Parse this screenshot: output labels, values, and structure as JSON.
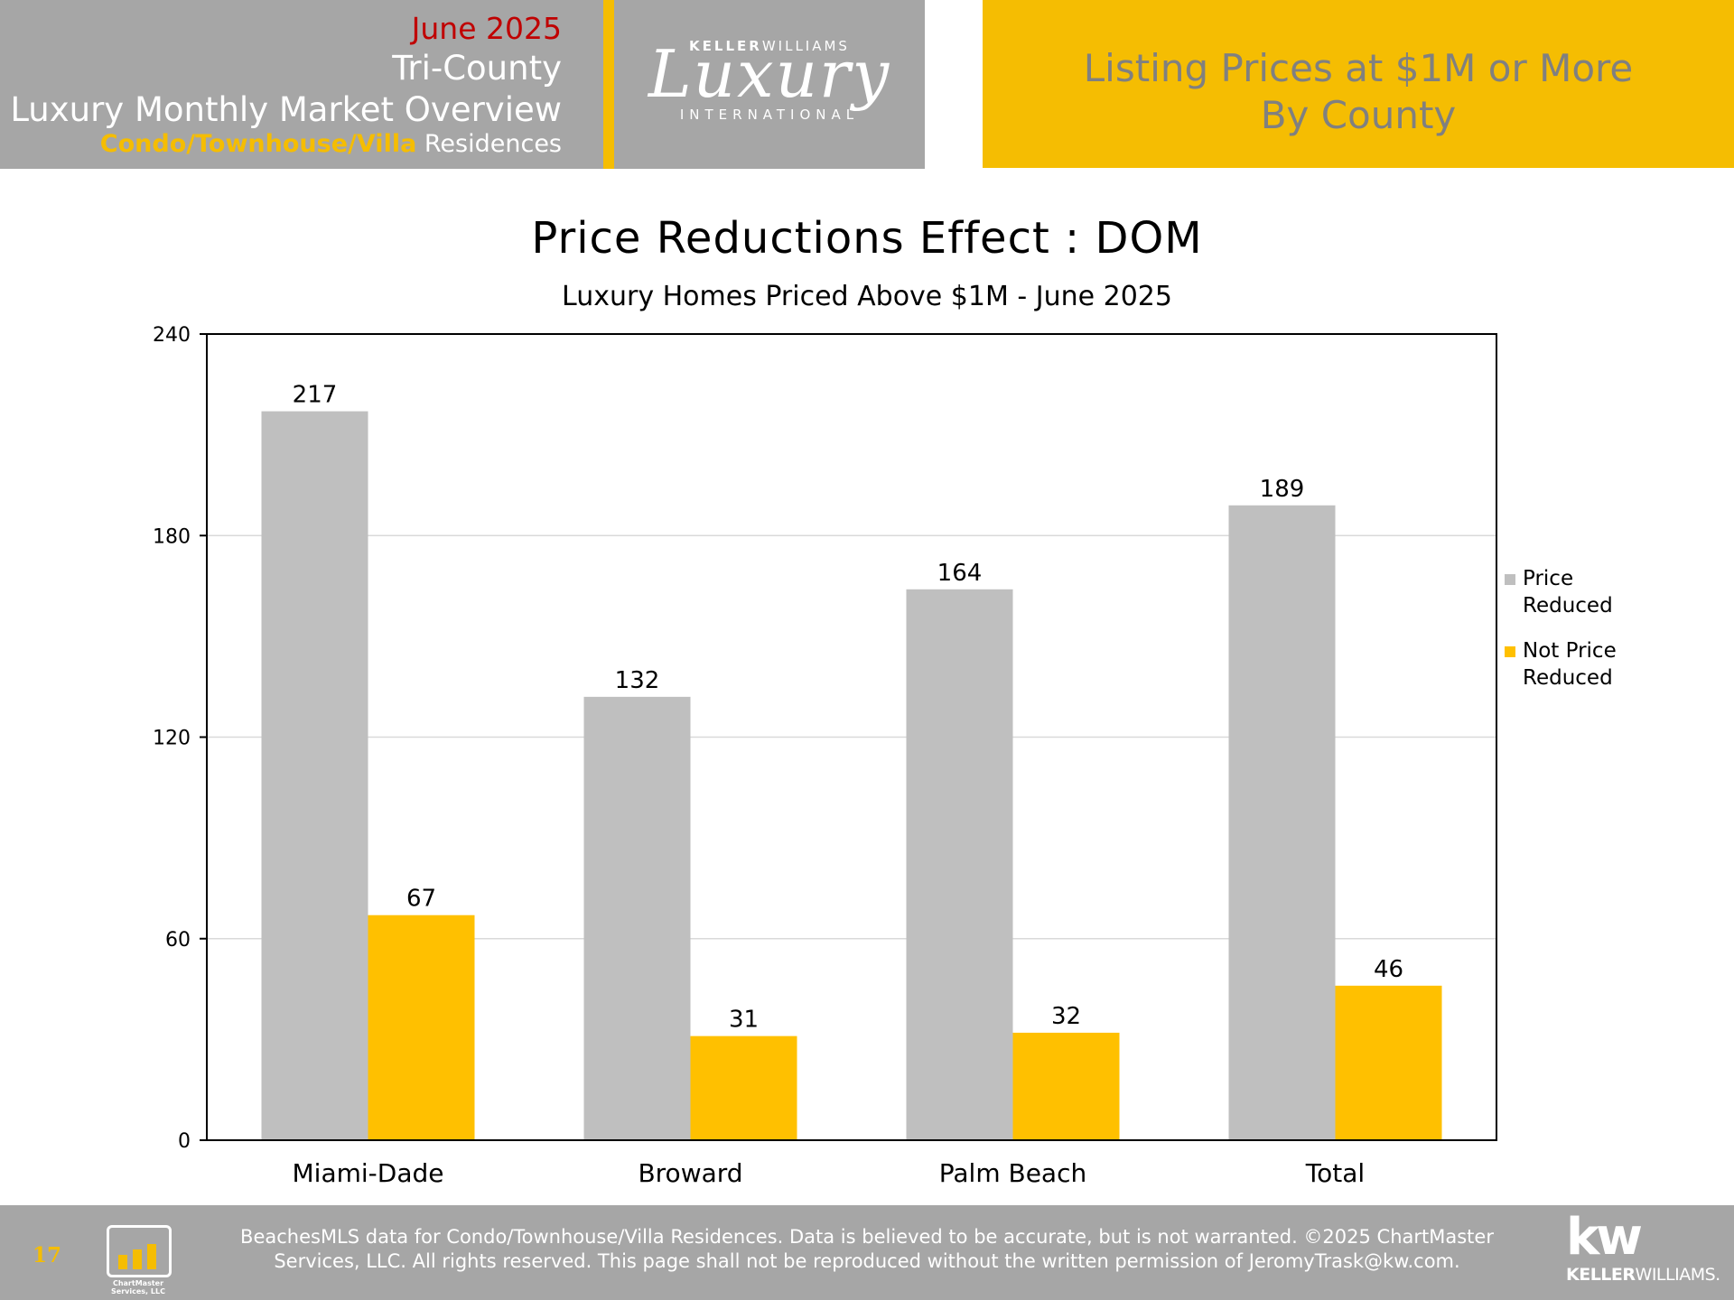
{
  "header": {
    "date": "June 2025",
    "region": "Tri-County",
    "report_title": "Luxury Monthly Market Overview",
    "property_type_highlight": "Condo/Townhouse/Villa",
    "property_type_rest": " Residences",
    "logo_top_bold": "KELLER",
    "logo_top_rest": "WILLIAMS",
    "logo_script": "Luxury",
    "logo_bottom": "INTERNATIONAL",
    "topic_line1": "Listing Prices at $1M or More",
    "topic_line2": "By County"
  },
  "colors": {
    "accent_gold": "#f5bd02",
    "bar_gray": "#bfbfbf",
    "bar_gold": "#ffc000",
    "header_gray": "#a6a6a6",
    "date_red": "#c00000"
  },
  "chart_data": {
    "type": "bar",
    "title": "Price Reductions Effect : DOM",
    "subtitle": "Luxury Homes Priced Above $1M - June 2025",
    "categories": [
      "Miami-Dade",
      "Broward",
      "Palm Beach",
      "Total"
    ],
    "series": [
      {
        "name": "Price Reduced",
        "legend_lines": [
          "Price",
          "Reduced"
        ],
        "color": "#bfbfbf",
        "values": [
          217,
          132,
          164,
          189
        ]
      },
      {
        "name": "Not Price Reduced",
        "legend_lines": [
          "Not Price",
          "Reduced"
        ],
        "color": "#ffc000",
        "values": [
          67,
          31,
          32,
          46
        ]
      }
    ],
    "ylim": [
      0,
      240
    ],
    "yticks": [
      0,
      60,
      120,
      180,
      240
    ],
    "grid": true,
    "legend_position": "right",
    "data_labels": true
  },
  "footer": {
    "page_number": "17",
    "chartmaster_logo_text": "ChartMaster Services, LLC",
    "disclaimer_line1": "BeachesMLS data for Condo/Townhouse/Villa Residences.  Data is believed to be accurate, but is not warranted.   ©2025  ChartMaster",
    "disclaimer_line2": "Services, LLC.  All rights reserved. This page shall not be reproduced without the written permission of JeromyTrask@kw.com.",
    "kw_mark": "kw",
    "kw_name_bold": "KELLER",
    "kw_name_rest": "WILLIAMS."
  }
}
